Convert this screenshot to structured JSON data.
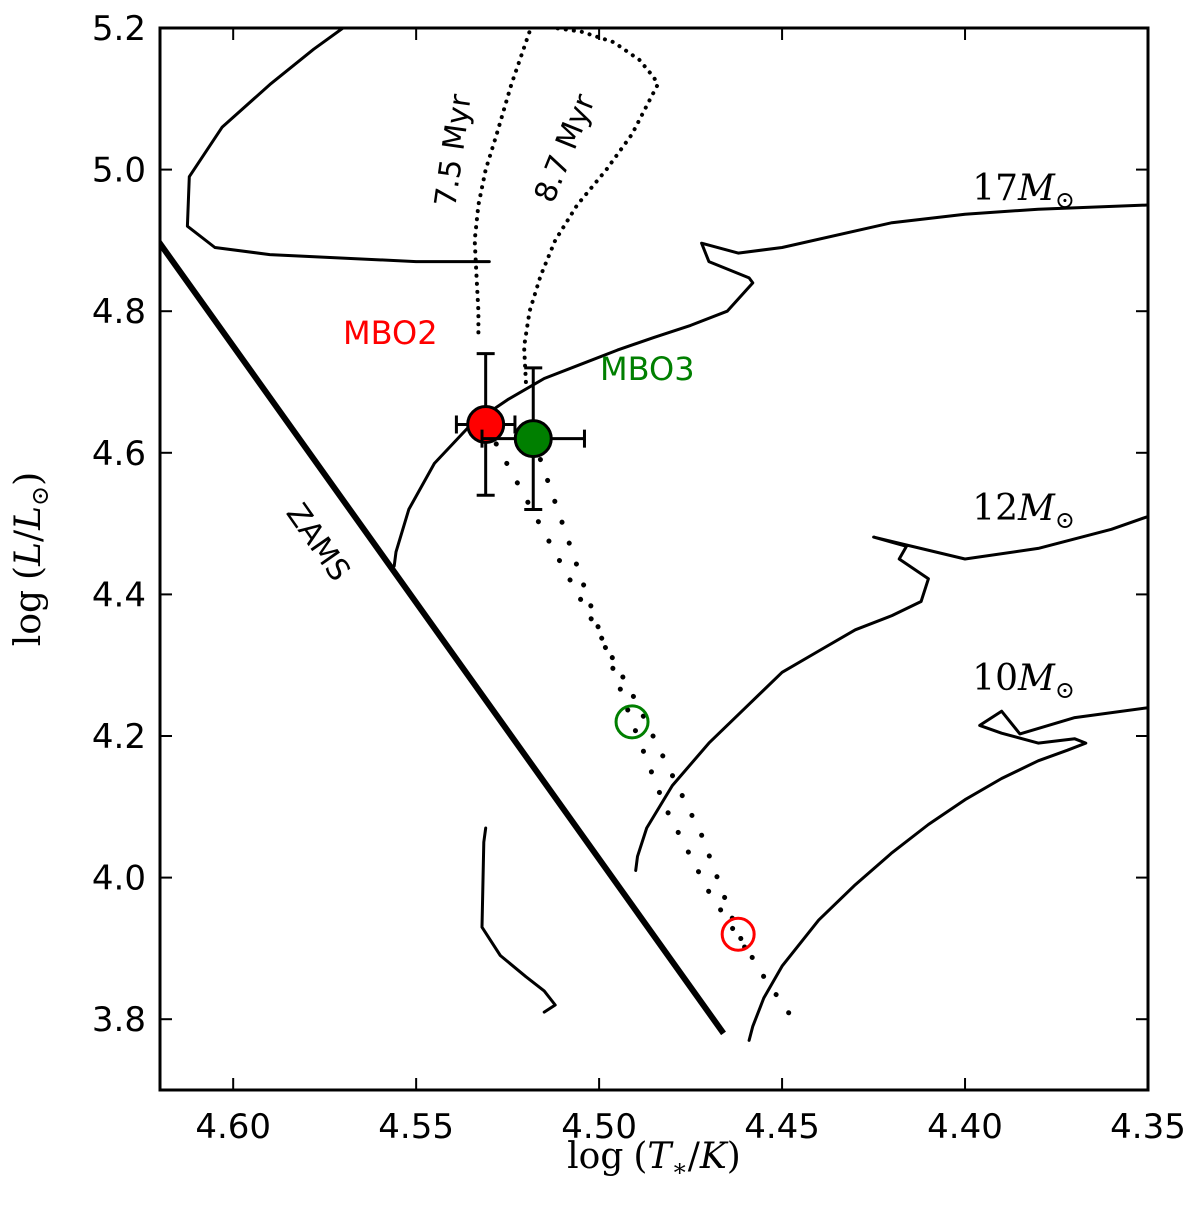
{
  "chart_data": {
    "type": "scatter",
    "title": "",
    "xlabel": "log (T∗/K)",
    "ylabel": "log (L/L⊙)",
    "xlim": [
      4.62,
      4.35
    ],
    "ylim": [
      3.7,
      5.2
    ],
    "x_reversed": true,
    "x_ticks": [
      "4.60",
      "4.55",
      "4.50",
      "4.45",
      "4.40",
      "4.35"
    ],
    "x_tick_values": [
      4.6,
      4.55,
      4.5,
      4.45,
      4.4,
      4.35
    ],
    "y_ticks": [
      "3.8",
      "4.0",
      "4.2",
      "4.4",
      "4.6",
      "4.8",
      "5.0",
      "5.2"
    ],
    "y_tick_values": [
      3.8,
      4.0,
      4.2,
      4.4,
      4.6,
      4.8,
      5.0,
      5.2
    ],
    "grid": false,
    "stars": [
      {
        "name": "MBO2",
        "color": "#ff0000",
        "logT": 4.531,
        "logL": 4.64,
        "xerr": 0.008,
        "yerr": 0.1,
        "reference_logT": 4.462,
        "reference_logL": 3.92
      },
      {
        "name": "MBO3",
        "color": "#007f00",
        "logT": 4.518,
        "logL": 4.62,
        "xerr": 0.014,
        "yerr": 0.1,
        "reference_logT": 4.491,
        "reference_logL": 4.22
      }
    ],
    "zams": {
      "label": "ZAMS",
      "x": [
        4.622,
        4.466
      ],
      "y": [
        4.91,
        3.78
      ]
    },
    "tracks": [
      {
        "name": "17",
        "mass_label": "17M⊙",
        "x": [
          4.556,
          4.5555,
          4.552,
          4.545,
          4.535,
          4.525,
          4.515,
          4.505,
          4.495,
          4.485,
          4.475,
          4.465,
          4.458,
          4.459,
          4.47,
          4.472,
          4.462,
          4.45,
          4.42,
          4.4,
          4.38,
          4.35
        ],
        "y": [
          4.44,
          4.46,
          4.52,
          4.585,
          4.64,
          4.675,
          4.705,
          4.725,
          4.745,
          4.763,
          4.78,
          4.8,
          4.84,
          4.847,
          4.87,
          4.896,
          4.882,
          4.89,
          4.925,
          4.937,
          4.944,
          4.95
        ]
      },
      {
        "name": "12",
        "mass_label": "12M⊙",
        "x": [
          4.49,
          4.4895,
          4.487,
          4.48,
          4.47,
          4.46,
          4.45,
          4.44,
          4.43,
          4.42,
          4.412,
          4.41,
          4.418,
          4.416,
          4.425,
          4.4,
          4.38,
          4.36,
          4.35
        ],
        "y": [
          4.01,
          4.03,
          4.07,
          4.13,
          4.19,
          4.24,
          4.29,
          4.32,
          4.35,
          4.37,
          4.39,
          4.422,
          4.45,
          4.468,
          4.481,
          4.45,
          4.465,
          4.492,
          4.51
        ]
      },
      {
        "name": "10",
        "mass_label": "10M⊙",
        "x": [
          4.459,
          4.458,
          4.455,
          4.45,
          4.44,
          4.43,
          4.42,
          4.41,
          4.4,
          4.39,
          4.38,
          4.372,
          4.367,
          4.37,
          4.38,
          4.39,
          4.396,
          4.39,
          4.385,
          4.37,
          4.35
        ],
        "y": [
          3.77,
          3.79,
          3.83,
          3.875,
          3.94,
          3.99,
          4.035,
          4.075,
          4.11,
          4.14,
          4.165,
          4.18,
          4.19,
          4.196,
          4.19,
          4.204,
          4.215,
          4.235,
          4.203,
          4.226,
          4.24
        ]
      }
    ],
    "pms_tracks": [
      {
        "x": [
          4.57,
          4.578,
          4.59,
          4.603,
          4.612,
          4.6125,
          4.605,
          4.59,
          4.57,
          4.55,
          4.53
        ],
        "y": [
          5.2,
          5.17,
          5.12,
          5.06,
          4.99,
          4.92,
          4.89,
          4.88,
          4.875,
          4.87,
          4.87
        ]
      },
      {
        "x": [
          4.531,
          4.5315,
          4.532,
          4.527,
          4.52,
          4.515,
          4.512,
          4.515
        ],
        "y": [
          4.07,
          4.05,
          3.93,
          3.89,
          3.86,
          3.84,
          3.82,
          3.81
        ]
      }
    ],
    "isochrones": [
      {
        "label": "7.5 Myr",
        "x": [
          4.533,
          4.533,
          4.5335,
          4.534,
          4.533,
          4.531,
          4.528,
          4.524,
          4.519
        ],
        "y": [
          4.77,
          4.8,
          4.85,
          4.9,
          4.95,
          5.0,
          5.05,
          5.12,
          5.195
        ]
      },
      {
        "label": "8.7 Myr",
        "x": [
          4.52,
          4.5205,
          4.519,
          4.516,
          4.512,
          4.506,
          4.498,
          4.491,
          4.486,
          4.484,
          4.485,
          4.489,
          4.496,
          4.505,
          4.512
        ],
        "y": [
          4.7,
          4.75,
          4.8,
          4.85,
          4.9,
          4.95,
          5.0,
          5.05,
          5.1,
          5.12,
          5.13,
          5.155,
          5.18,
          5.195,
          5.2
        ]
      }
    ],
    "connectors": [
      {
        "star": "MBO2",
        "x": [
          4.531,
          4.51,
          4.49,
          4.472,
          4.462,
          4.455,
          4.447
        ],
        "y": [
          4.64,
          4.44,
          4.25,
          4.06,
          3.92,
          3.86,
          3.8
        ]
      },
      {
        "star": "MBO3",
        "x": [
          4.518,
          4.51,
          4.5,
          4.491,
          4.482,
          4.47,
          4.46
        ],
        "y": [
          4.62,
          4.5,
          4.35,
          4.22,
          4.1,
          3.98,
          3.9
        ]
      }
    ]
  }
}
